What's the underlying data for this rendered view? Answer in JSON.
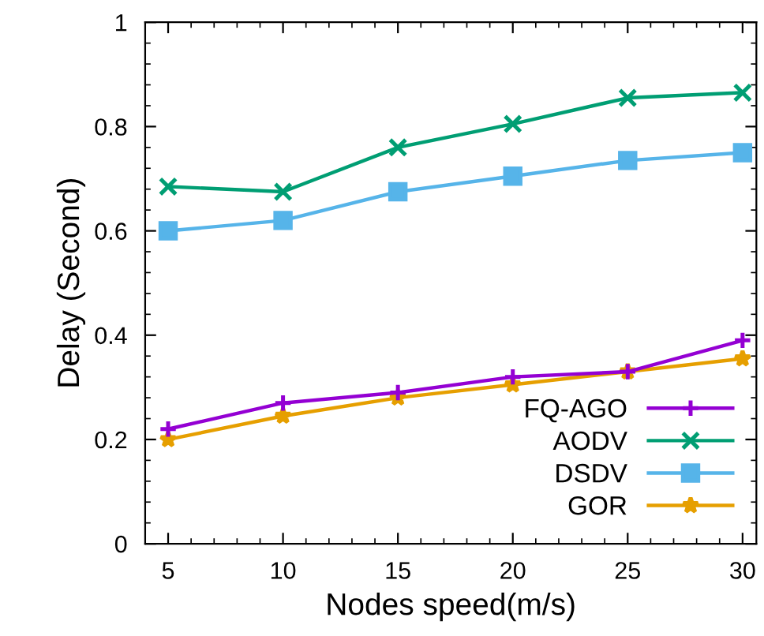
{
  "chart_data": {
    "type": "line",
    "xlabel": "Nodes speed(m/s)",
    "ylabel": "Delay (Second)",
    "x": [
      5,
      10,
      15,
      20,
      25,
      30
    ],
    "series": [
      {
        "name": "FQ-AGO",
        "color": "#9400d3",
        "marker": "cross",
        "values": [
          0.22,
          0.27,
          0.29,
          0.32,
          0.33,
          0.39
        ]
      },
      {
        "name": "AODV",
        "color": "#009e73",
        "marker": "x",
        "values": [
          0.685,
          0.675,
          0.76,
          0.805,
          0.855,
          0.865
        ]
      },
      {
        "name": "DSDV",
        "color": "#56b4e9",
        "marker": "square",
        "values": [
          0.6,
          0.62,
          0.675,
          0.705,
          0.735,
          0.75
        ]
      },
      {
        "name": "GOR",
        "color": "#e69f00",
        "marker": "star",
        "values": [
          0.2,
          0.245,
          0.28,
          0.305,
          0.33,
          0.355
        ]
      }
    ],
    "xlim": [
      4,
      30.6
    ],
    "xticks": [
      5,
      10,
      15,
      20,
      25,
      30
    ],
    "ylim": [
      0,
      1
    ],
    "yticks": [
      0,
      0.2,
      0.4,
      0.6,
      0.8,
      1
    ],
    "grid": false,
    "legend": "bottom right",
    "line_style": "solid"
  }
}
